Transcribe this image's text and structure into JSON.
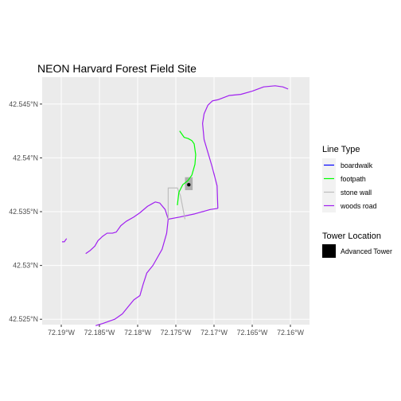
{
  "chart_data": {
    "type": "map",
    "title": "NEON Harvard Forest Field Site",
    "xlim": [
      -72.1925,
      -72.1575
    ],
    "ylim": [
      42.5245,
      42.5475
    ],
    "x_ticks": [
      {
        "value": -72.19,
        "label": "72.19°W"
      },
      {
        "value": -72.185,
        "label": "72.185°W"
      },
      {
        "value": -72.18,
        "label": "72.18°W"
      },
      {
        "value": -72.175,
        "label": "72.175°W"
      },
      {
        "value": -72.17,
        "label": "72.17°W"
      },
      {
        "value": -72.165,
        "label": "72.165°W"
      },
      {
        "value": -72.16,
        "label": "72.16°W"
      }
    ],
    "y_ticks": [
      {
        "value": 42.525,
        "label": "42.525°N"
      },
      {
        "value": 42.53,
        "label": "42.53°N"
      },
      {
        "value": 42.535,
        "label": "42.535°N"
      },
      {
        "value": 42.54,
        "label": "42.54°N"
      },
      {
        "value": 42.545,
        "label": "42.545°N"
      }
    ],
    "grid": true,
    "background": "#ebebeb",
    "legend_placement": "right",
    "legends": {
      "line_type": {
        "title": "Line Type",
        "entries": [
          {
            "label": "boardwalk",
            "color": "#0000ff"
          },
          {
            "label": "footpath",
            "color": "#00ff00"
          },
          {
            "label": "stone wall",
            "color": "#bebebe"
          },
          {
            "label": "woods road",
            "color": "#a020f0"
          }
        ]
      },
      "tower": {
        "title": "Tower Location",
        "entries": [
          {
            "label": "Advanced Tower",
            "color": "#000000"
          }
        ]
      }
    },
    "polygons": [
      {
        "name": "tower-area",
        "color": "#999999",
        "points": [
          [
            -72.1738,
            42.5382
          ],
          [
            -72.1728,
            42.5382
          ],
          [
            -72.1728,
            42.537
          ],
          [
            -72.1738,
            42.537
          ]
        ]
      }
    ],
    "lines": [
      {
        "type": "woods road",
        "color": "#a020f0",
        "points": [
          [
            -72.1899,
            42.5322
          ],
          [
            -72.1896,
            42.5322
          ],
          [
            -72.1893,
            42.5325
          ]
        ]
      },
      {
        "type": "woods road",
        "color": "#a020f0",
        "points": [
          [
            -72.1868,
            42.5311
          ],
          [
            -72.1862,
            42.5314
          ],
          [
            -72.1856,
            42.5318
          ],
          [
            -72.1852,
            42.5323
          ],
          [
            -72.1846,
            42.5327
          ],
          [
            -72.184,
            42.533
          ],
          [
            -72.1833,
            42.533
          ],
          [
            -72.1828,
            42.5331
          ],
          [
            -72.1822,
            42.5337
          ],
          [
            -72.1815,
            42.5341
          ],
          [
            -72.1805,
            42.5345
          ],
          [
            -72.1797,
            42.5349
          ],
          [
            -72.1787,
            42.5355
          ],
          [
            -72.1782,
            42.5357
          ],
          [
            -72.1777,
            42.5359
          ],
          [
            -72.1771,
            42.5358
          ],
          [
            -72.1764,
            42.5352
          ],
          [
            -72.176,
            42.5343
          ]
        ]
      },
      {
        "type": "woods road",
        "color": "#a020f0",
        "points": [
          [
            -72.176,
            42.5343
          ],
          [
            -72.1762,
            42.533
          ],
          [
            -72.1768,
            42.5315
          ],
          [
            -72.1776,
            42.5305
          ],
          [
            -72.178,
            42.53
          ],
          [
            -72.1788,
            42.5293
          ],
          [
            -72.1793,
            42.5282
          ],
          [
            -72.1797,
            42.5272
          ],
          [
            -72.1805,
            42.5268
          ],
          [
            -72.1812,
            42.5262
          ],
          [
            -72.182,
            42.5255
          ],
          [
            -72.183,
            42.525
          ],
          [
            -72.1838,
            42.5248
          ],
          [
            -72.1846,
            42.5246
          ],
          [
            -72.1855,
            42.5244
          ]
        ]
      },
      {
        "type": "woods road",
        "color": "#a020f0",
        "points": [
          [
            -72.176,
            42.5343
          ],
          [
            -72.1745,
            42.5345
          ],
          [
            -72.1725,
            42.5348
          ],
          [
            -72.1705,
            42.5352
          ],
          [
            -72.1695,
            42.5353
          ]
        ]
      },
      {
        "type": "woods road",
        "color": "#a020f0",
        "points": [
          [
            -72.1695,
            42.5353
          ],
          [
            -72.1696,
            42.5374
          ],
          [
            -72.17,
            42.5385
          ],
          [
            -72.1703,
            42.5393
          ],
          [
            -72.1708,
            42.5405
          ],
          [
            -72.1713,
            42.5417
          ],
          [
            -72.1715,
            42.5432
          ],
          [
            -72.1713,
            42.5441
          ],
          [
            -72.1708,
            42.5449
          ],
          [
            -72.1702,
            42.5453
          ],
          [
            -72.1695,
            42.5454
          ],
          [
            -72.168,
            42.5458
          ],
          [
            -72.1665,
            42.5459
          ],
          [
            -72.165,
            42.5462
          ],
          [
            -72.1635,
            42.5466
          ],
          [
            -72.162,
            42.5467
          ],
          [
            -72.161,
            42.5466
          ],
          [
            -72.1603,
            42.5464
          ]
        ]
      },
      {
        "type": "stone wall",
        "color": "#bebebe",
        "points": [
          [
            -72.176,
            42.5343
          ],
          [
            -72.176,
            42.5372
          ],
          [
            -72.1748,
            42.5372
          ],
          [
            -72.1744,
            42.5365
          ],
          [
            -72.1738,
            42.5343
          ]
        ]
      },
      {
        "type": "footpath",
        "color": "#00ff00",
        "points": [
          [
            -72.1748,
            42.5356
          ],
          [
            -72.1746,
            42.5368
          ],
          [
            -72.1741,
            42.5375
          ],
          [
            -72.1734,
            42.5379
          ],
          [
            -72.1729,
            42.5384
          ],
          [
            -72.1725,
            42.5394
          ],
          [
            -72.1724,
            42.5403
          ],
          [
            -72.1726,
            42.5413
          ],
          [
            -72.1729,
            42.5416
          ],
          [
            -72.1734,
            42.5418
          ],
          [
            -72.1739,
            42.5419
          ],
          [
            -72.1745,
            42.5425
          ]
        ]
      }
    ],
    "points": [
      {
        "label": "Advanced Tower",
        "x": -72.1733,
        "y": 42.5375,
        "color": "#000000"
      }
    ]
  }
}
